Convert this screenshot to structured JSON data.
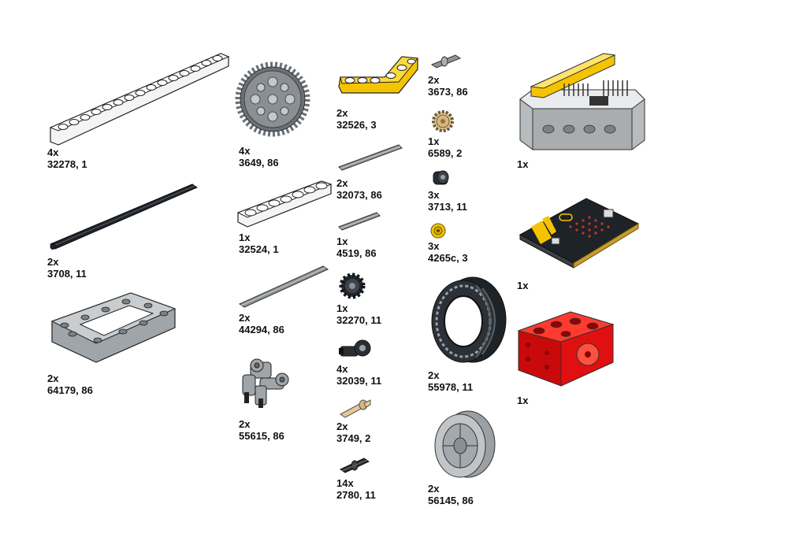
{
  "colors": {
    "white_part": "#f4f4f4",
    "black_part": "#1e2328",
    "gray_part": "#a0a5a9",
    "dark_gray_part": "#6b7075",
    "yellow_part": "#f5c400",
    "tan_part": "#e6c896",
    "red_part": "#d20a0a",
    "outline": "#222222",
    "label_text": "#111111"
  },
  "parts": [
    {
      "id": "beam15",
      "qty": "4x",
      "code": "32278, 1",
      "icon": "technic-beam-15-icon"
    },
    {
      "id": "axle32",
      "qty": "2x",
      "code": "3708, 11",
      "icon": "axle-icon"
    },
    {
      "id": "frame",
      "qty": "2x",
      "code": "64179, 86",
      "icon": "technic-frame-icon"
    },
    {
      "id": "gear40",
      "qty": "4x",
      "code": "3649, 86",
      "icon": "gear-40-icon"
    },
    {
      "id": "beam7",
      "qty": "1x",
      "code": "32524, 1",
      "icon": "technic-beam-7-icon"
    },
    {
      "id": "axle9",
      "qty": "2x",
      "code": "44294, 86",
      "icon": "axle-icon"
    },
    {
      "id": "connector",
      "qty": "2x",
      "code": "55615, 86",
      "icon": "pin-connector-icon"
    },
    {
      "id": "lbeam",
      "qty": "2x",
      "code": "32526, 3",
      "icon": "l-beam-icon"
    },
    {
      "id": "axle6",
      "qty": "2x",
      "code": "32073, 86",
      "icon": "axle-icon"
    },
    {
      "id": "axle3",
      "qty": "1x",
      "code": "4519, 86",
      "icon": "axle-icon"
    },
    {
      "id": "gear12",
      "qty": "1x",
      "code": "32270, 11",
      "icon": "gear-12-icon"
    },
    {
      "id": "axlepin",
      "qty": "4x",
      "code": "32039, 11",
      "icon": "axle-connector-icon"
    },
    {
      "id": "tanaxle",
      "qty": "2x",
      "code": "3749, 2",
      "icon": "axle-pin-icon"
    },
    {
      "id": "pin",
      "qty": "14x",
      "code": "2780, 11",
      "icon": "friction-pin-icon"
    },
    {
      "id": "pinsmall",
      "qty": "2x",
      "code": "3673, 86",
      "icon": "pin-icon"
    },
    {
      "id": "bevel",
      "qty": "1x",
      "code": "6589, 2",
      "icon": "bevel-gear-icon"
    },
    {
      "id": "bush",
      "qty": "3x",
      "code": "3713, 11",
      "icon": "bush-icon"
    },
    {
      "id": "halfbush",
      "qty": "3x",
      "code": "4265c, 3",
      "icon": "half-bush-icon"
    },
    {
      "id": "tire",
      "qty": "2x",
      "code": "55978, 11",
      "icon": "tire-icon"
    },
    {
      "id": "rim",
      "qty": "2x",
      "code": "56145, 86",
      "icon": "rim-icon"
    },
    {
      "id": "board",
      "qty": "1x",
      "code": "",
      "icon": "expansion-board-icon"
    },
    {
      "id": "microbit",
      "qty": "1x",
      "code": "",
      "icon": "microbit-icon"
    },
    {
      "id": "motor",
      "qty": "1x",
      "code": "",
      "icon": "motor-icon"
    }
  ]
}
